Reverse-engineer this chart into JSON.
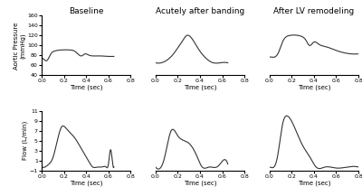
{
  "col_titles": [
    "Baseline",
    "Acutely after banding",
    "After LV remodeling"
  ],
  "pressure_ylabel": "Aortic Pressure\n(mmHg)",
  "flow_ylabel": "Flow (L/min)",
  "xlabel": "Time (sec)",
  "pressure_ylim": [
    40,
    160
  ],
  "pressure_yticks": [
    40,
    60,
    80,
    100,
    120,
    140,
    160
  ],
  "flow_ylim": [
    -1,
    11
  ],
  "flow_yticks": [
    -1,
    1,
    3,
    5,
    7,
    9,
    11
  ],
  "xlim": [
    0.0,
    0.8
  ],
  "xticks": [
    0.0,
    0.2,
    0.4,
    0.6,
    0.8
  ],
  "line_color": "#333333",
  "line_width": 0.8,
  "background_color": "#ffffff",
  "title_fontsize": 6.5,
  "label_fontsize": 5.0,
  "tick_fontsize": 4.5
}
